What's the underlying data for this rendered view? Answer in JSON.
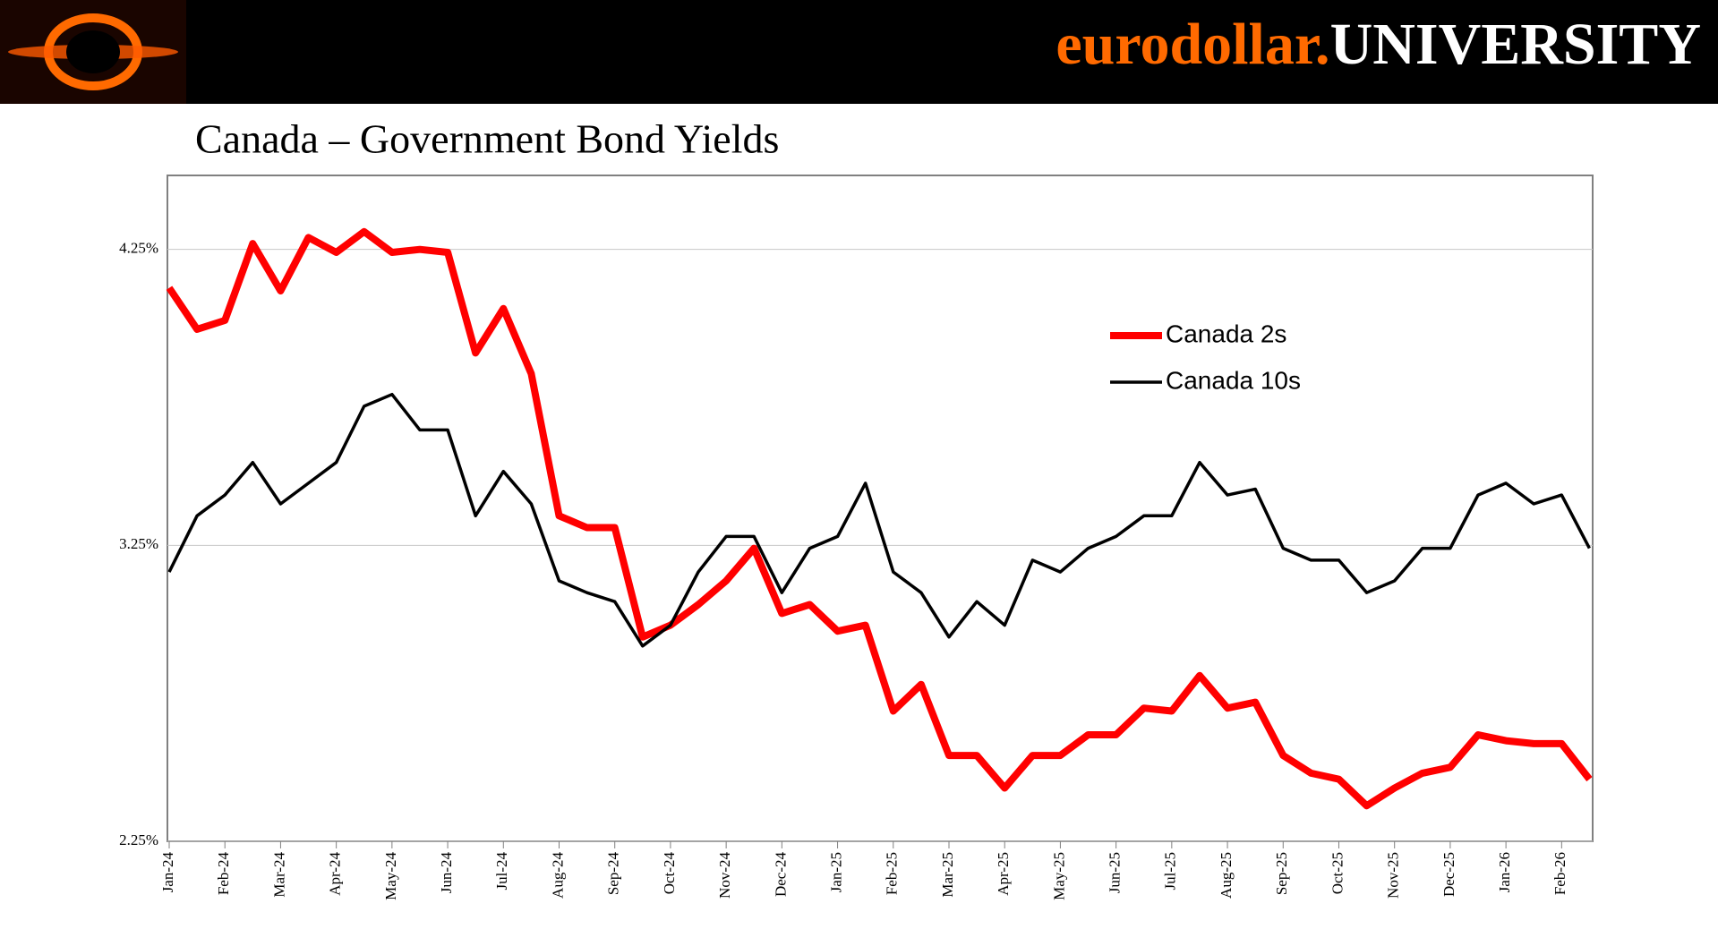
{
  "brand": {
    "name": "eurodollar.",
    "suffix": "UNIVERSITY"
  },
  "chart_data": {
    "type": "line",
    "title": "Canada – Government Bond Yields",
    "categories": [
      "Jan-24",
      null,
      "Feb-24",
      null,
      "Mar-24",
      null,
      "Apr-24",
      null,
      "May-24",
      null,
      "Jun-24",
      null,
      "Jul-24",
      null,
      "Aug-24",
      null,
      "Sep-24",
      null,
      "Oct-24",
      null,
      "Nov-24",
      null,
      "Dec-24",
      null,
      "Jan-25",
      null,
      "Feb-25",
      null,
      "Mar-25",
      null,
      "Apr-25",
      null,
      "May-25",
      null,
      "Jun-25",
      null,
      "Jul-25",
      null,
      "Aug-25",
      null,
      "Sep-25",
      null,
      "Oct-25",
      null,
      "Nov-25",
      null,
      "Dec-25",
      null,
      "Jan-26",
      null,
      "Feb-26",
      null
    ],
    "series": [
      {
        "name": "Canada 2s",
        "color": "#ff0000",
        "values": [
          4.12,
          3.98,
          4.01,
          4.27,
          4.11,
          4.29,
          4.24,
          4.31,
          4.24,
          4.25,
          4.24,
          3.9,
          4.05,
          3.83,
          3.35,
          3.31,
          3.31,
          2.94,
          2.98,
          3.05,
          3.13,
          3.24,
          3.02,
          3.05,
          2.96,
          2.98,
          2.69,
          2.78,
          2.54,
          2.54,
          2.43,
          2.54,
          2.54,
          2.61,
          2.61,
          2.7,
          2.69,
          2.81,
          2.7,
          2.72,
          2.54,
          2.48,
          2.46,
          2.37,
          2.43,
          2.48,
          2.5,
          2.61,
          2.59,
          2.58,
          2.58,
          2.46
        ]
      },
      {
        "name": "Canada 10s",
        "color": "#000000",
        "values": [
          3.16,
          3.35,
          3.42,
          3.53,
          3.39,
          3.46,
          3.53,
          3.72,
          3.76,
          3.64,
          3.64,
          3.35,
          3.5,
          3.39,
          3.13,
          3.09,
          3.06,
          2.91,
          2.98,
          3.16,
          3.28,
          3.28,
          3.09,
          3.24,
          3.28,
          3.46,
          3.16,
          3.09,
          2.94,
          3.06,
          2.98,
          3.2,
          3.16,
          3.24,
          3.28,
          3.35,
          3.35,
          3.53,
          3.42,
          3.44,
          3.24,
          3.2,
          3.2,
          3.09,
          3.13,
          3.24,
          3.24,
          3.42,
          3.46,
          3.39,
          3.42,
          3.24
        ]
      }
    ],
    "ylim": [
      2.25,
      4.5
    ],
    "yticks": [
      {
        "value": 2.25,
        "label": "2.25%"
      },
      {
        "value": 3.25,
        "label": "3.25%"
      },
      {
        "value": 4.25,
        "label": "4.25%"
      }
    ],
    "grid": true,
    "legend": "upper right"
  }
}
